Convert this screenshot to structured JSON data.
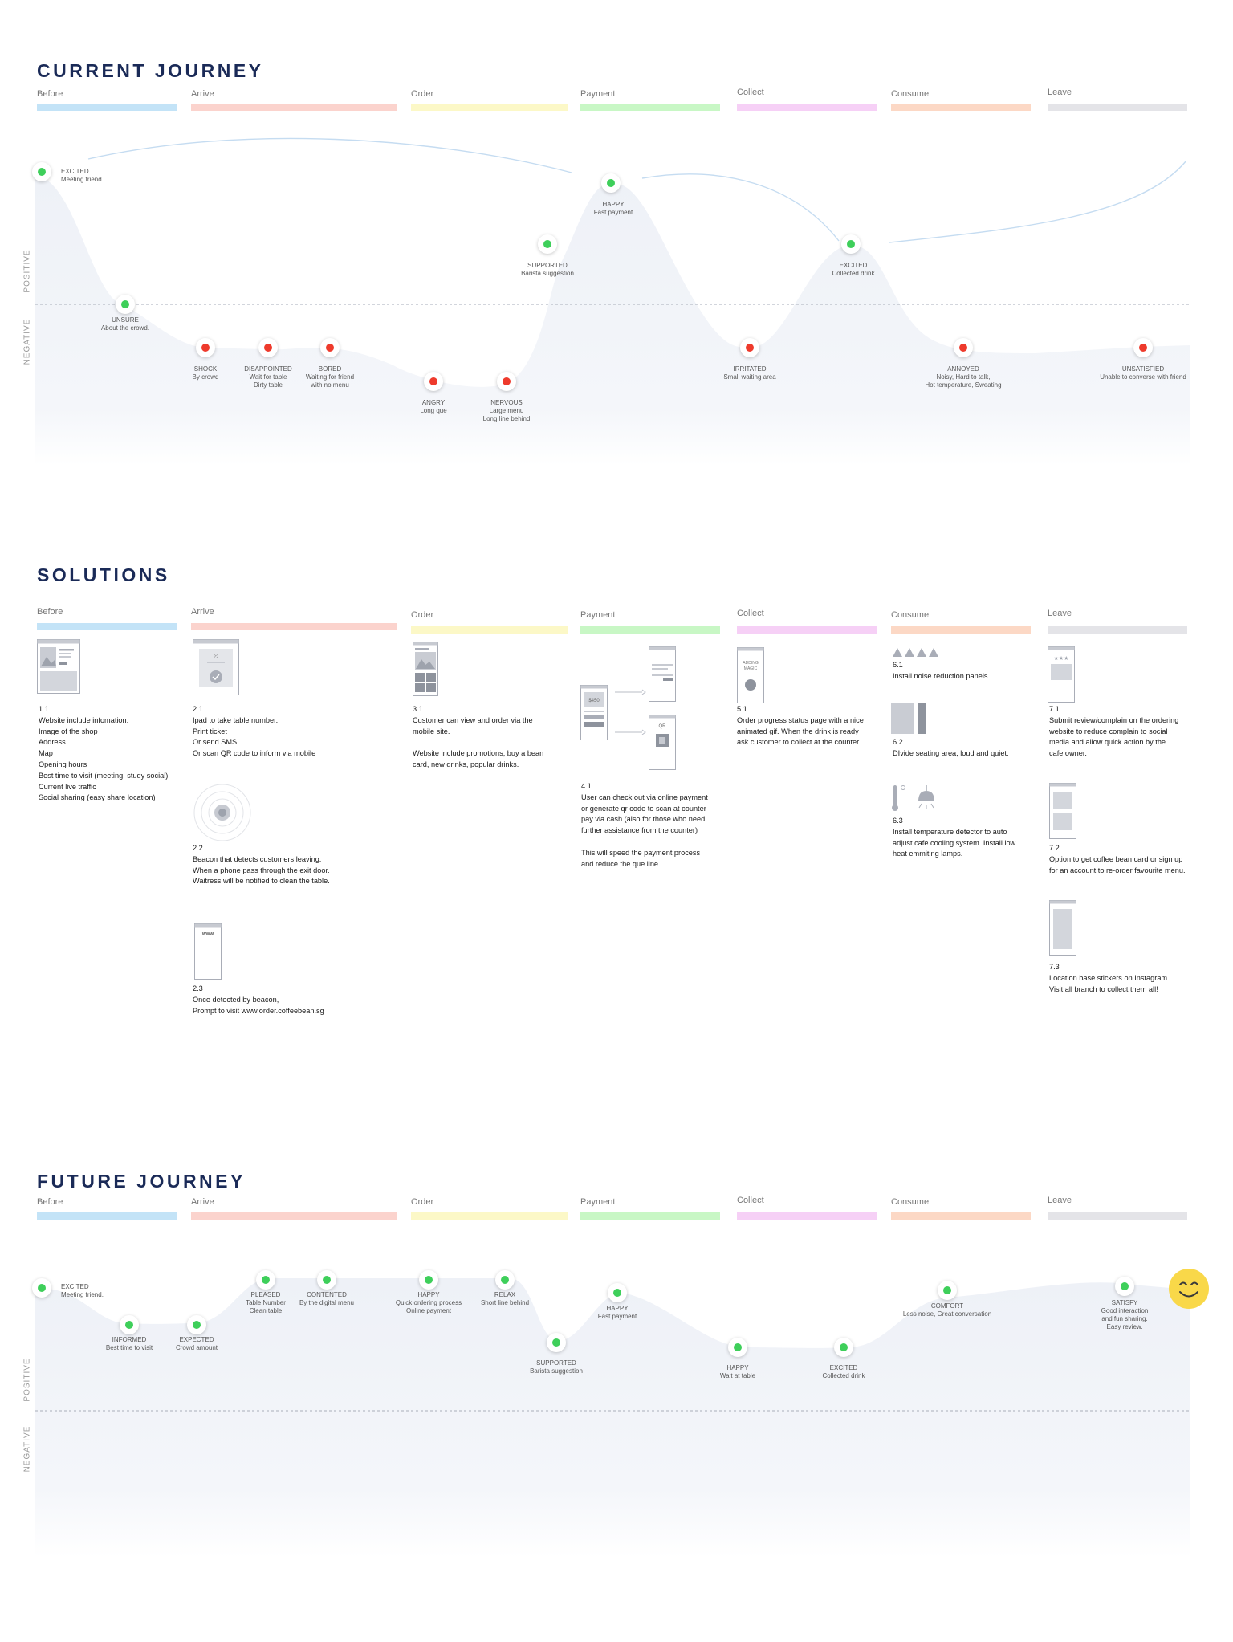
{
  "current": {
    "title": "CURRENT JOURNEY",
    "axis_positive": "POSITIVE",
    "axis_negative": "NEGATIVE",
    "stages": [
      "Before",
      "Arrive",
      "Order",
      "Payment",
      "Collect",
      "Consume",
      "Leave"
    ],
    "points": [
      {
        "emotion": "EXCITED",
        "desc": [
          "Meeting friend."
        ],
        "mood": "positive"
      },
      {
        "emotion": "UNSURE",
        "desc": [
          "About the crowd."
        ],
        "mood": "positive"
      },
      {
        "emotion": "SHOCK",
        "desc": [
          "By crowd"
        ],
        "mood": "negative"
      },
      {
        "emotion": "DISAPPOINTED",
        "desc": [
          "Wait for table",
          "Dirty table"
        ],
        "mood": "negative"
      },
      {
        "emotion": "BORED",
        "desc": [
          "Waiting for friend",
          "with no menu"
        ],
        "mood": "negative"
      },
      {
        "emotion": "ANGRY",
        "desc": [
          "Long que"
        ],
        "mood": "negative"
      },
      {
        "emotion": "NERVOUS",
        "desc": [
          "Large menu",
          "Long line behind"
        ],
        "mood": "negative"
      },
      {
        "emotion": "SUPPORTED",
        "desc": [
          "Barista suggestion"
        ],
        "mood": "positive"
      },
      {
        "emotion": "HAPPY",
        "desc": [
          "Fast payment"
        ],
        "mood": "positive"
      },
      {
        "emotion": "IRRITATED",
        "desc": [
          "Small waiting area"
        ],
        "mood": "negative"
      },
      {
        "emotion": "EXCITED",
        "desc": [
          "Collected drink"
        ],
        "mood": "positive"
      },
      {
        "emotion": "ANNOYED",
        "desc": [
          "Noisy, Hard to talk,",
          "Hot temperature, Sweating"
        ],
        "mood": "negative"
      },
      {
        "emotion": "UNSATISFIED",
        "desc": [
          "Unable to converse with friend"
        ],
        "mood": "negative"
      }
    ]
  },
  "solutions": {
    "title": "SOLUTIONS",
    "stages": [
      "Before",
      "Arrive",
      "Order",
      "Payment",
      "Collect",
      "Consume",
      "Leave"
    ],
    "wire_text": {
      "price": "$450",
      "qr": "QR",
      "magic": [
        "ADDING",
        "MAGIC"
      ],
      "www": "WWW",
      "ticket": "22"
    },
    "items": [
      {
        "id": "1.1",
        "lines": [
          "Website include infomation:",
          "Image of the shop",
          "Address",
          "Map",
          "Opening hours",
          "Best time to visit (meeting, study social)",
          "Current live traffic",
          "Social sharing (easy share location)"
        ]
      },
      {
        "id": "2.1",
        "lines": [
          "Ipad to take table number.",
          "Print ticket",
          "Or send SMS",
          "Or scan QR code to inform via mobile"
        ]
      },
      {
        "id": "2.2",
        "lines": [
          "Beacon that detects customers leaving.",
          "When a phone pass through the exit door.",
          "Waitress will be notified to clean the table."
        ]
      },
      {
        "id": "2.3",
        "lines": [
          "Once detected by beacon,",
          "Prompt to visit www.order.coffeebean.sg"
        ]
      },
      {
        "id": "3.1",
        "lines": [
          "Customer can view and order via the",
          "mobile site.",
          "",
          "Website include promotions, buy a bean",
          "card, new drinks, popular drinks."
        ]
      },
      {
        "id": "4.1",
        "lines": [
          "User can check out via online payment",
          "or generate qr code to scan at counter",
          "pay via cash (also for those who need",
          "further assistance from the counter)",
          "",
          "This will speed the payment process",
          "and reduce the que line."
        ]
      },
      {
        "id": "5.1",
        "lines": [
          "Order progress status page with a nice",
          "animated gif. When the drink is ready",
          "ask customer to collect at the counter."
        ]
      },
      {
        "id": "6.1",
        "lines": [
          "Install noise reduction panels."
        ]
      },
      {
        "id": "6.2",
        "lines": [
          "DIvide seating area, loud and quiet."
        ]
      },
      {
        "id": "6.3",
        "lines": [
          "Install temperature detector to auto",
          "adjust cafe cooling system. Install low",
          "heat emmiting lamps."
        ]
      },
      {
        "id": "7.1",
        "lines": [
          "Submit review/complain on the ordering",
          "website to reduce complain to social",
          "media and allow quick action by the",
          "cafe owner."
        ]
      },
      {
        "id": "7.2",
        "lines": [
          "Option to get coffee bean card or sign up",
          "for an account to re-order favourite menu."
        ]
      },
      {
        "id": "7.3",
        "lines": [
          "Location base stickers on Instagram.",
          "Visit all branch to collect them all!"
        ]
      }
    ]
  },
  "future": {
    "title": "FUTURE JOURNEY",
    "axis_positive": "POSITIVE",
    "axis_negative": "NEGATIVE",
    "stages": [
      "Before",
      "Arrive",
      "Order",
      "Payment",
      "Collect",
      "Consume",
      "Leave"
    ],
    "points": [
      {
        "emotion": "EXCITED",
        "desc": [
          "Meeting friend."
        ]
      },
      {
        "emotion": "INFORMED",
        "desc": [
          "Best time to visit"
        ]
      },
      {
        "emotion": "EXPECTED",
        "desc": [
          "Crowd amount"
        ]
      },
      {
        "emotion": "PLEASED",
        "desc": [
          "Table Number",
          "Clean table"
        ]
      },
      {
        "emotion": "CONTENTED",
        "desc": [
          "By the digital menu"
        ]
      },
      {
        "emotion": "HAPPY",
        "desc": [
          "Quick ordering process",
          "Online payment"
        ]
      },
      {
        "emotion": "RELAX",
        "desc": [
          "Short line behind"
        ]
      },
      {
        "emotion": "SUPPORTED",
        "desc": [
          "Barista suggestion"
        ]
      },
      {
        "emotion": "HAPPY",
        "desc": [
          "Fast payment"
        ]
      },
      {
        "emotion": "HAPPY",
        "desc": [
          "Wait at table"
        ]
      },
      {
        "emotion": "EXCITED",
        "desc": [
          "Collected drink"
        ]
      },
      {
        "emotion": "COMFORT",
        "desc": [
          "Less noise, Great conversation"
        ]
      },
      {
        "emotion": "SATISFY",
        "desc": [
          "Good interaction",
          "and fun sharing.",
          "Easy review."
        ]
      }
    ]
  },
  "colors": {
    "title": "#1a2a57",
    "positive_dot": "#3ecf5a",
    "negative_dot": "#ee3a2c",
    "curve_fill": "#f2f4f9",
    "stage_bars": [
      "#c3e3f7",
      "#fbd3cd",
      "#fcf8c7",
      "#c8f7c5",
      "#f6d0f6",
      "#fcd8c5",
      "#e4e4e8"
    ],
    "smile": "#f9d849"
  }
}
